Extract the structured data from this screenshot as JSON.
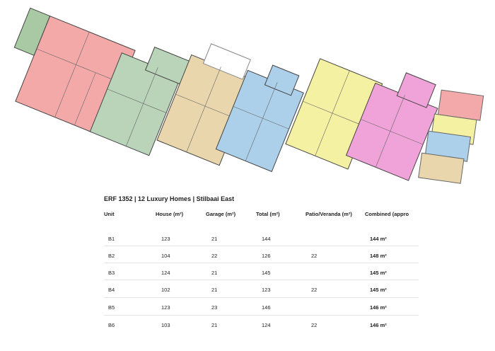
{
  "title": "ERF 1352 | 12 Luxury Homes | Stilbaai East",
  "table": {
    "header": [
      "Unit",
      "House (m²)",
      "Garage (m²)",
      "Total (m²)",
      "Patio/Veranda (m²)",
      "Combined (appro"
    ],
    "rows": [
      [
        "B1",
        123,
        21,
        144,
        null,
        "144 m²"
      ],
      [
        "B2",
        104,
        22,
        126,
        22,
        "148 m²"
      ],
      [
        "B3",
        124,
        21,
        145,
        null,
        "145 m²"
      ],
      [
        "B4",
        102,
        21,
        123,
        22,
        "145 m²"
      ],
      [
        "B5",
        123,
        23,
        146,
        null,
        "146 m²"
      ],
      [
        "B6",
        103,
        21,
        124,
        22,
        "146 m²"
      ]
    ]
  }
}
